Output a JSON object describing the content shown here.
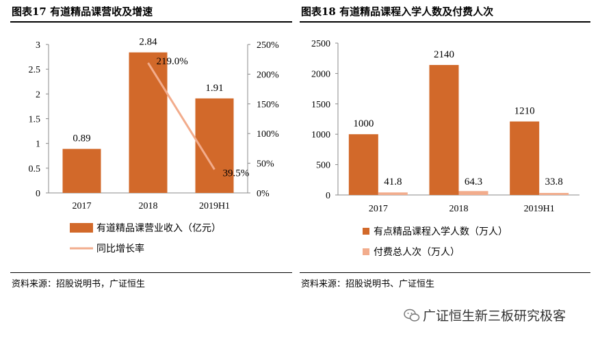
{
  "left": {
    "title": "图表17 有道精品课营收及增速",
    "source": "资料来源：招股说明书，广证恒生"
  },
  "right": {
    "title": "图表18 有道精品课程入学人数及付费人次",
    "source": "资料来源：招股说明书、广证恒生"
  },
  "watermark": "广证恒生新三板研究极客",
  "colors": {
    "bar": "#D2692A",
    "light": "#F2AC8C",
    "rule": "#000000"
  },
  "chart_data": [
    {
      "type": "bar",
      "title": "图表17 有道精品课营收及增速",
      "categories": [
        "2017",
        "2018",
        "2019H1"
      ],
      "series": [
        {
          "name": "有道精品课营业收入（亿元）",
          "type": "bar",
          "axis": "left",
          "values": [
            0.89,
            2.84,
            1.91
          ],
          "labels": [
            "0.89",
            "2.84",
            "1.91"
          ]
        },
        {
          "name": "同比增长率",
          "type": "line",
          "axis": "right",
          "values": [
            null,
            2.19,
            0.395
          ],
          "labels": [
            "",
            "219.0%",
            "39.5%"
          ]
        }
      ],
      "ylim": [
        0,
        3
      ],
      "yticks": [
        "0",
        "0.5",
        "1",
        "1.5",
        "2",
        "2.5",
        "3"
      ],
      "y2lim": [
        0,
        2.5
      ],
      "y2ticks": [
        "0%",
        "50%",
        "100%",
        "150%",
        "200%",
        "250%"
      ],
      "legend": "bottom"
    },
    {
      "type": "bar",
      "title": "图表18 有道精品课程入学人数及付费人次",
      "categories": [
        "2017",
        "2018",
        "2019H1"
      ],
      "series": [
        {
          "name": "有点精品课程入学人数（万人）",
          "values": [
            1000,
            2140,
            1210
          ],
          "labels": [
            "1000",
            "2140",
            "1210"
          ]
        },
        {
          "name": "付费总人次（万人）",
          "values": [
            41.8,
            64.3,
            33.8
          ],
          "labels": [
            "41.8",
            "64.3",
            "33.8"
          ]
        }
      ],
      "ylim": [
        0,
        2500
      ],
      "yticks": [
        "0",
        "500",
        "1000",
        "1500",
        "2000",
        "2500"
      ],
      "legend": "bottom"
    }
  ]
}
